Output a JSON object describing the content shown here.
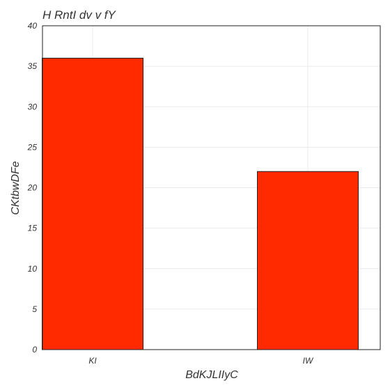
{
  "chart_data": {
    "type": "bar",
    "title": "H RntI dv v fY",
    "xlabel": "BdKJLIIyC",
    "ylabel": "CKtbwDFe",
    "categories": [
      "KI",
      "IW"
    ],
    "values": [
      36,
      22
    ],
    "ylim": [
      0,
      40
    ],
    "yticks": [
      0,
      5,
      10,
      15,
      20,
      25,
      30,
      35,
      40
    ],
    "grid": true,
    "legend": "none",
    "bar_color": "#ff2a00"
  }
}
